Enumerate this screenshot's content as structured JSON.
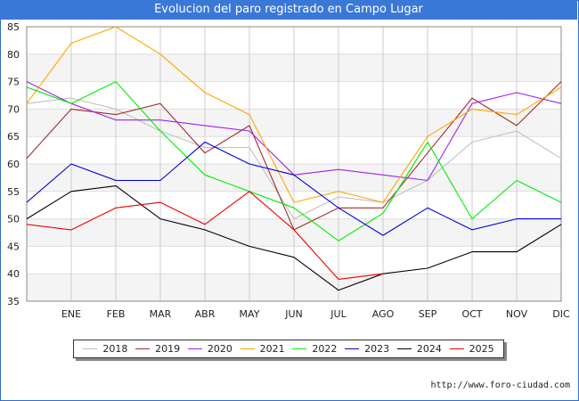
{
  "chart_data": {
    "type": "line",
    "title": "Evolucion del paro registrado en Campo Lugar",
    "xlabel": "",
    "ylabel": "",
    "categories": [
      "",
      "ENE",
      "FEB",
      "MAR",
      "ABR",
      "MAY",
      "JUN",
      "JUL",
      "AGO",
      "SEP",
      "OCT",
      "NOV",
      "DIC"
    ],
    "ylim": [
      35,
      85
    ],
    "yticks": [
      35,
      40,
      45,
      50,
      55,
      60,
      65,
      70,
      75,
      80,
      85
    ],
    "grid": true,
    "legend_position": "bottom",
    "series": [
      {
        "name": "2018",
        "color": "#c0c0c0",
        "values": [
          71,
          72,
          70,
          66,
          63,
          63,
          50,
          54,
          53,
          57,
          64,
          66,
          61
        ]
      },
      {
        "name": "2019",
        "color": "#a52a2a",
        "values": [
          61,
          70,
          69,
          71,
          62,
          67,
          48,
          52,
          52,
          62,
          72,
          67,
          75
        ]
      },
      {
        "name": "2020",
        "color": "#a020f0",
        "values": [
          75,
          71,
          68,
          68,
          67,
          66,
          58,
          59,
          58,
          57,
          71,
          73,
          71
        ]
      },
      {
        "name": "2021",
        "color": "#ffa500",
        "values": [
          71,
          82,
          85,
          80,
          73,
          69,
          53,
          55,
          53,
          65,
          70,
          69,
          74
        ]
      },
      {
        "name": "2022",
        "color": "#00ee00",
        "values": [
          74,
          71,
          75,
          66,
          58,
          55,
          52,
          46,
          51,
          64,
          50,
          57,
          53
        ]
      },
      {
        "name": "2023",
        "color": "#0000dd",
        "values": [
          53,
          60,
          57,
          57,
          64,
          60,
          58,
          52,
          47,
          52,
          48,
          50,
          50
        ]
      },
      {
        "name": "2024",
        "color": "#000000",
        "values": [
          50,
          55,
          56,
          50,
          48,
          45,
          43,
          37,
          40,
          41,
          44,
          44,
          49
        ]
      },
      {
        "name": "2025",
        "color": "#ee0000",
        "values": [
          49,
          48,
          52,
          53,
          49,
          55,
          48,
          39,
          40,
          null,
          null,
          null,
          null
        ]
      }
    ]
  },
  "source_text": "http://www.foro-ciudad.com"
}
